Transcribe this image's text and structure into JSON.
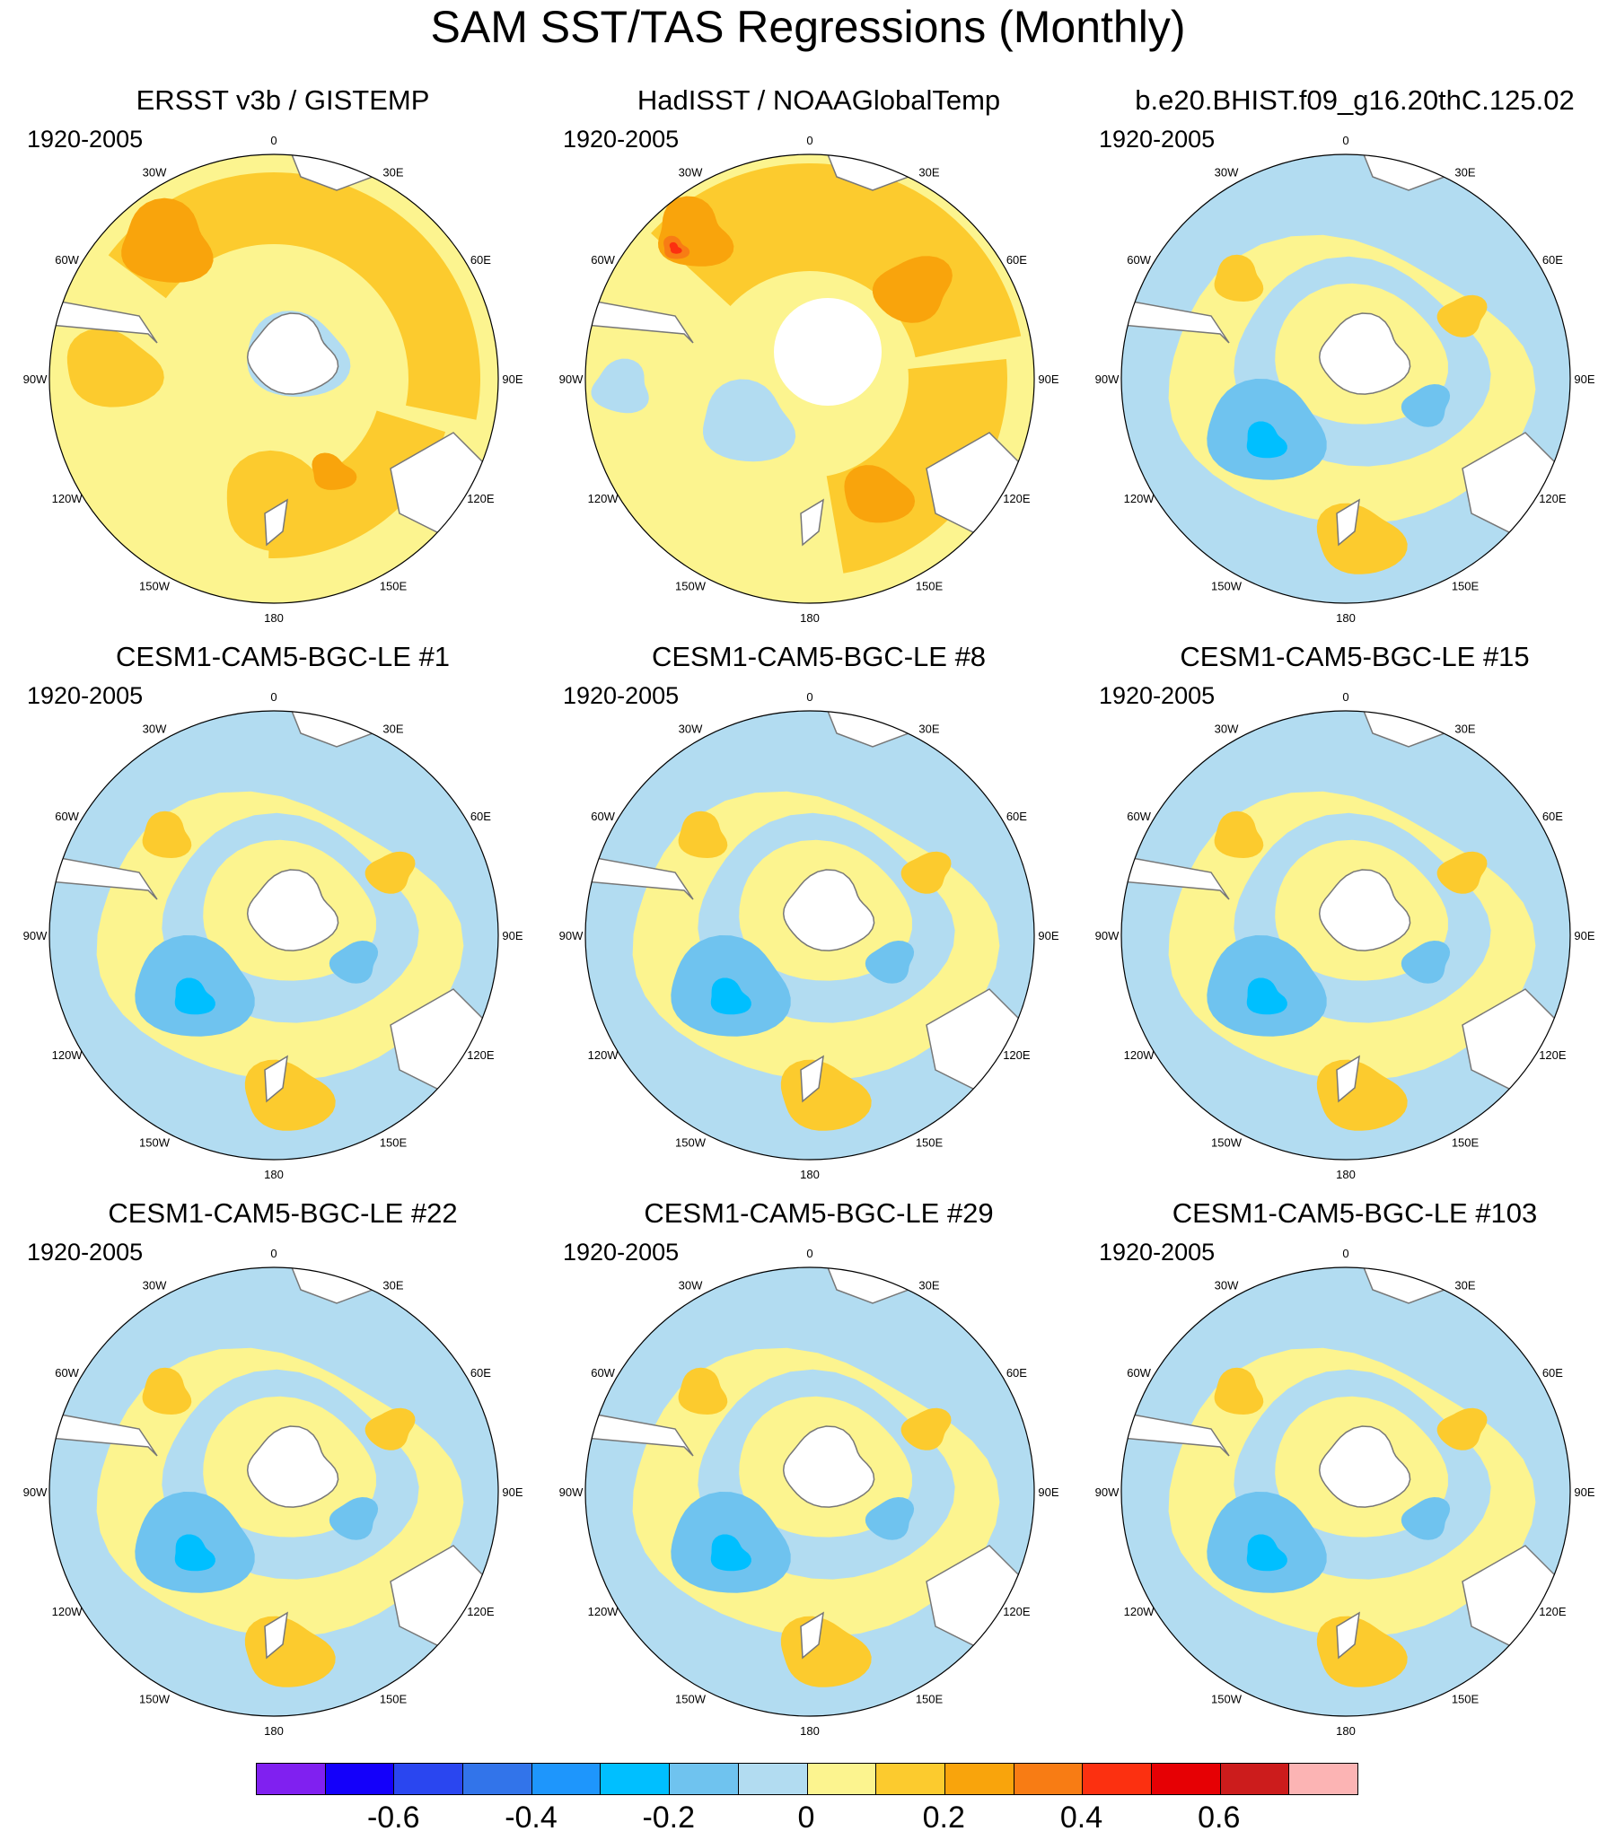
{
  "title": "SAM SST/TAS Regressions (Monthly)",
  "colors": {
    "land": "#ffffff",
    "coast": "#777777",
    "neg": [
      "#b2dcf1",
      "#6fc3ef",
      "#00bfff"
    ],
    "pos": [
      "#fcf48f",
      "#fccb2e",
      "#f9a40c",
      "#f87c14",
      "#fc3010"
    ]
  },
  "longitude_labels": [
    "0",
    "30E",
    "60E",
    "90E",
    "120E",
    "150E",
    "180",
    "150W",
    "120W",
    "90W",
    "60W",
    "30W"
  ],
  "panels": [
    {
      "title": "ERSST v3b / GISTEMP",
      "period": "1920-2005",
      "pattern": "obs1"
    },
    {
      "title": "HadISST / NOAAGlobalTemp",
      "period": "1920-2005",
      "pattern": "obs2"
    },
    {
      "title": "b.e20.BHIST.f09_g16.20thC.125.02",
      "period": "1920-2005",
      "pattern": "model"
    },
    {
      "title": "CESM1-CAM5-BGC-LE #1",
      "period": "1920-2005",
      "pattern": "model"
    },
    {
      "title": "CESM1-CAM5-BGC-LE #8",
      "period": "1920-2005",
      "pattern": "model"
    },
    {
      "title": "CESM1-CAM5-BGC-LE #15",
      "period": "1920-2005",
      "pattern": "model"
    },
    {
      "title": "CESM1-CAM5-BGC-LE #22",
      "period": "1920-2005",
      "pattern": "model"
    },
    {
      "title": "CESM1-CAM5-BGC-LE #29",
      "period": "1920-2005",
      "pattern": "model"
    },
    {
      "title": "CESM1-CAM5-BGC-LE #103",
      "period": "1920-2005",
      "pattern": "model"
    }
  ],
  "colorbar": {
    "colors": [
      "#8020f0",
      "#1400fa",
      "#2a46f0",
      "#3274ea",
      "#1e96fc",
      "#00bfff",
      "#6fc3ef",
      "#b2dcf1",
      "#fcf48f",
      "#fccb2e",
      "#f9a40c",
      "#f87c14",
      "#fc3010",
      "#e60004",
      "#cc1c1c",
      "#fcb4b4"
    ],
    "tick_labels": [
      "-0.6",
      "-0.4",
      "-0.2",
      "0",
      "0.2",
      "0.4",
      "0.6"
    ],
    "tick_values": [
      -0.6,
      -0.4,
      -0.2,
      0,
      0.2,
      0.4,
      0.6
    ],
    "levels": [
      -0.7,
      -0.6,
      -0.5,
      -0.4,
      -0.3,
      -0.2,
      -0.1,
      0,
      0.1,
      0.2,
      0.3,
      0.4,
      0.5,
      0.6,
      0.7
    ]
  }
}
